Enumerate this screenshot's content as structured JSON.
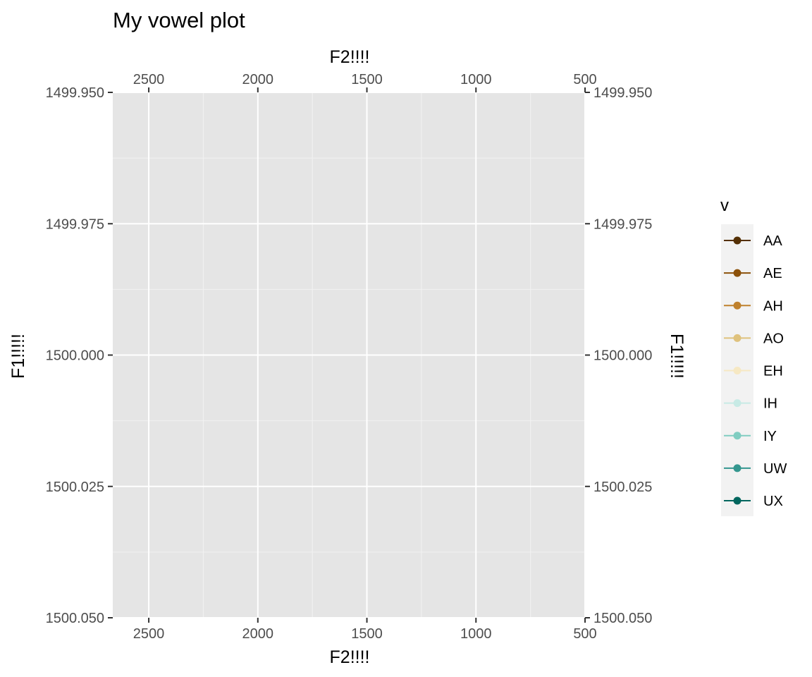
{
  "chart_data": {
    "type": "line",
    "title": "My vowel plot",
    "xlabel": "F2!!!!",
    "ylabel": "F1!!!!!",
    "x_reversed": true,
    "y_reversed": true,
    "xlim": [
      2665,
      500
    ],
    "ylim": [
      1499.95,
      1500.05
    ],
    "x_ticks": [
      2500,
      2000,
      1500,
      1000,
      500
    ],
    "x_tick_labels": [
      "2500",
      "2000",
      "1500",
      "1000",
      "500"
    ],
    "y_ticks": [
      1499.95,
      1499.975,
      1500.0,
      1500.025,
      1500.05
    ],
    "y_tick_labels": [
      "1499.950",
      "1499.975",
      "1500.000",
      "1500.025",
      "1500.050"
    ],
    "secondary_axes": true,
    "grid": true,
    "panel_background": "#e5e5e5",
    "legend_placement": "right",
    "legend": {
      "title": "v",
      "entries": [
        {
          "label": "AA",
          "color": "#543005"
        },
        {
          "label": "AE",
          "color": "#8c510a"
        },
        {
          "label": "AH",
          "color": "#bf812d"
        },
        {
          "label": "AO",
          "color": "#dfc27d"
        },
        {
          "label": "EH",
          "color": "#f6e8c3"
        },
        {
          "label": "IH",
          "color": "#c7eae5"
        },
        {
          "label": "IY",
          "color": "#80cdc1"
        },
        {
          "label": "UW",
          "color": "#35978f"
        },
        {
          "label": "UX",
          "color": "#01665e"
        }
      ]
    },
    "series": []
  }
}
